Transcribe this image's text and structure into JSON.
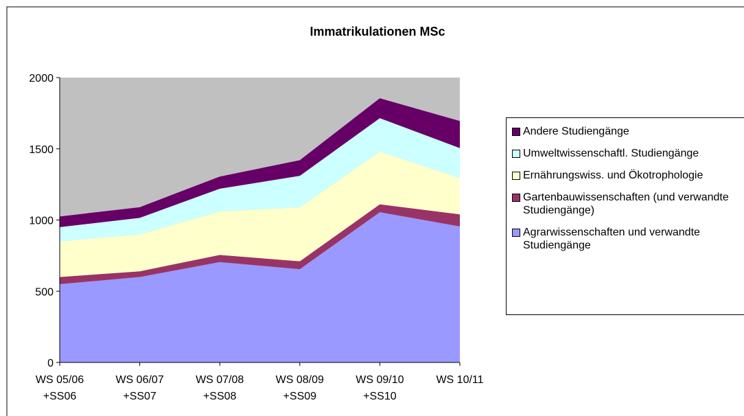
{
  "chart_data": {
    "type": "stacked_area",
    "title": "Immatrikulationen MSc",
    "categories": [
      [
        "WS 05/06",
        "+SS06"
      ],
      [
        "WS 06/07",
        "+SS07"
      ],
      [
        "WS 07/08",
        "+SS08"
      ],
      [
        "WS 08/09",
        "+SS09"
      ],
      [
        "WS 09/10",
        "+SS10"
      ],
      [
        "WS 10/11"
      ]
    ],
    "series": [
      {
        "name": "Agrarwissenschaften und verwandte Studiengänge",
        "color": "#9999ff",
        "values": [
          550,
          600,
          705,
          655,
          1055,
          955
        ]
      },
      {
        "name": "Gartenbauwissenschaften (und verwandte Studiengänge)",
        "color": "#993366",
        "values": [
          50,
          40,
          50,
          55,
          55,
          85
        ]
      },
      {
        "name": "Ernährungswiss. und Ökotrophologie",
        "color": "#ffffcc",
        "values": [
          250,
          260,
          305,
          380,
          370,
          255
        ]
      },
      {
        "name": "Umweltwissenschaftl. Studiengänge",
        "color": "#ccffff",
        "values": [
          100,
          115,
          160,
          220,
          235,
          210
        ]
      },
      {
        "name": "Andere Studiengänge",
        "color": "#660066",
        "values": [
          75,
          75,
          85,
          110,
          140,
          190
        ]
      }
    ],
    "ylim": [
      0,
      2000
    ],
    "yticks": [
      0,
      500,
      1000,
      1500,
      2000
    ],
    "grid": false,
    "plot_background": "#c0c0c0",
    "legend": "right"
  }
}
